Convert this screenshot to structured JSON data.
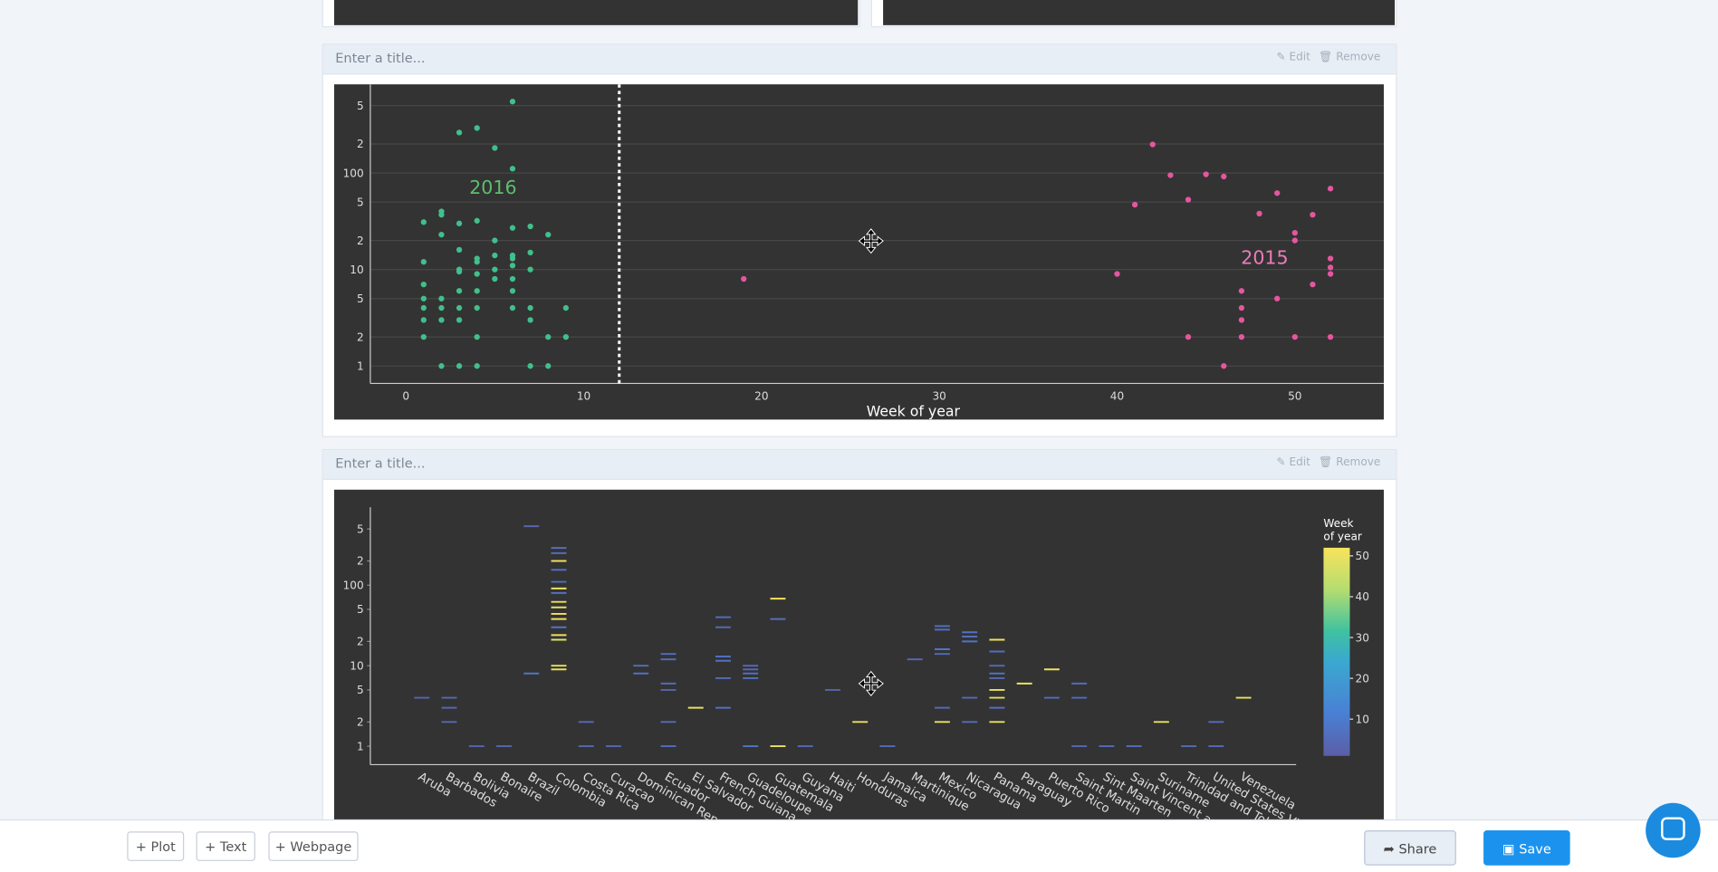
{
  "panels": [
    {
      "title_placeholder": "Enter a title...",
      "edit": "Edit",
      "remove": "Remove"
    },
    {
      "title_placeholder": "Enter a title...",
      "edit": "Edit",
      "remove": "Remove"
    }
  ],
  "toolbar": {
    "add_buttons": [
      "+ Plot",
      "+ Text",
      "+ Webpage"
    ],
    "share": "Share",
    "save": "Save"
  },
  "chart_data": [
    {
      "type": "scatter",
      "xlabel": "Week of year",
      "xlim": [
        -2,
        55
      ],
      "xticks": [
        0,
        10,
        20,
        30,
        40,
        50
      ],
      "yscale": "log",
      "ylim": [
        0.66,
        830
      ],
      "yticks": [
        1,
        2,
        5,
        10,
        {
          "value": 20,
          "label": "2"
        },
        {
          "value": 50,
          "label": "5"
        },
        100,
        {
          "value": 200,
          "label": "2"
        },
        {
          "value": 500,
          "label": "5"
        }
      ],
      "grid": true,
      "shapes": [
        {
          "type": "dashed-line",
          "x": 12,
          "color": "#ffffff"
        }
      ],
      "annotations": [
        {
          "text": "2016",
          "x": 4.9,
          "y": 71,
          "color": "#5cbf6e"
        },
        {
          "text": "2015",
          "x": 48.3,
          "y": 13.3,
          "color": "#ea7cba"
        }
      ],
      "series": [
        {
          "color": "#41bf8c",
          "x": [
            6,
            3,
            4,
            5,
            6,
            1,
            2,
            2,
            2,
            3,
            4,
            5,
            6,
            7,
            8,
            1,
            3,
            4,
            4,
            5,
            6,
            6,
            7,
            3,
            3,
            4,
            5,
            6,
            7,
            5,
            6,
            1,
            3,
            4,
            6,
            1,
            2,
            1,
            2,
            3,
            4,
            6,
            7,
            9,
            1,
            2,
            3,
            7,
            1,
            4,
            8,
            9,
            2,
            3,
            4,
            7,
            8
          ],
          "values": [
            550,
            263,
            293,
            182,
            111,
            31,
            40,
            37,
            23,
            30,
            32,
            20,
            27,
            28,
            23,
            12,
            16,
            13,
            12,
            14,
            14,
            13,
            15,
            10,
            9.5,
            9,
            10,
            11,
            10,
            8,
            8,
            7,
            6,
            6,
            6,
            5,
            5,
            4,
            4,
            4,
            4,
            4,
            4,
            4,
            3,
            3,
            3,
            3,
            2,
            2,
            2,
            2,
            1,
            1,
            1,
            1,
            1
          ]
        },
        {
          "color": "#e6569f",
          "x": [
            19,
            40,
            41,
            42,
            43,
            44,
            44,
            45,
            46,
            46,
            47,
            47,
            47,
            47,
            48,
            49,
            49,
            50,
            50,
            50,
            51,
            51,
            52,
            52,
            52,
            52,
            52
          ],
          "values": [
            8,
            9,
            47,
            198,
            95,
            53,
            2,
            97,
            92,
            1,
            6,
            4,
            3,
            2,
            38,
            62,
            5,
            24,
            20,
            2,
            37,
            7,
            69,
            13,
            10.5,
            9,
            2
          ]
        }
      ]
    },
    {
      "type": "strip",
      "categories": [
        "Aruba",
        "Barbados",
        "Bolivia",
        "Bonaire",
        "Brazil",
        "Colombia",
        "Costa Rica",
        "Curacao",
        "Dominican Republic",
        "Ecuador",
        "El Salvador",
        "French Guiana",
        "Guadeloupe",
        "Guatemala",
        "Guyana",
        "Haiti",
        "Honduras",
        "Jamaica",
        "Martinique",
        "Mexico",
        "Nicaragua",
        "Panama",
        "Paraguay",
        "Puerto Rico",
        "Saint Martin",
        "Sint Maarten",
        "Saint Vincent and the Grenadines",
        "Suriname",
        "Trinidad and Tobago",
        "United States Virgin Islands",
        "Venezuela"
      ],
      "xlim": [
        -1.88,
        31.92
      ],
      "yscale": "log",
      "ylim": [
        0.59,
        930
      ],
      "yticks": [
        1,
        2,
        5,
        10,
        {
          "value": 20,
          "label": "2"
        },
        {
          "value": 50,
          "label": "5"
        },
        100,
        {
          "value": 200,
          "label": "2"
        },
        {
          "value": 500,
          "label": "5"
        }
      ],
      "grid": false,
      "colorbar": {
        "title": [
          "Week",
          "of year"
        ],
        "range": [
          1,
          52
        ],
        "ticks": [
          10,
          20,
          30,
          40,
          50
        ],
        "colorscale": [
          [
            0,
            "#5b5ea6"
          ],
          [
            0.2,
            "#4a7fd4"
          ],
          [
            0.45,
            "#3aa8d0"
          ],
          [
            0.6,
            "#3fc2a0"
          ],
          [
            0.8,
            "#b5dd70"
          ],
          [
            1,
            "#f8e35c"
          ]
        ]
      },
      "x": [
        "Aruba",
        "Barbados",
        "Barbados",
        "Barbados",
        "Bolivia",
        "Bonaire",
        "Brazil",
        "Brazil",
        "Colombia",
        "Colombia",
        "Colombia",
        "Colombia",
        "Colombia",
        "Colombia",
        "Colombia",
        "Colombia",
        "Colombia",
        "Colombia",
        "Colombia",
        "Colombia",
        "Colombia",
        "Colombia",
        "Colombia",
        "Colombia",
        "Costa Rica",
        "Costa Rica",
        "Curacao",
        "Dominican Republic",
        "Dominican Republic",
        "Ecuador",
        "Ecuador",
        "Ecuador",
        "Ecuador",
        "Ecuador",
        "Ecuador",
        "El Salvador",
        "French Guiana",
        "French Guiana",
        "French Guiana",
        "French Guiana",
        "French Guiana",
        "French Guiana",
        "Guadeloupe",
        "Guadeloupe",
        "Guadeloupe",
        "Guadeloupe",
        "Guadeloupe",
        "Guatemala",
        "Guatemala",
        "Guatemala",
        "Guyana",
        "Haiti",
        "Honduras",
        "Jamaica",
        "Martinique",
        "Mexico",
        "Mexico",
        "Mexico",
        "Mexico",
        "Mexico",
        "Mexico",
        "Nicaragua",
        "Nicaragua",
        "Nicaragua",
        "Nicaragua",
        "Nicaragua",
        "Panama",
        "Panama",
        "Panama",
        "Panama",
        "Panama",
        "Panama",
        "Panama",
        "Panama",
        "Panama",
        "Paraguay",
        "Puerto Rico",
        "Puerto Rico",
        "Saint Martin",
        "Saint Martin",
        "Saint Martin",
        "Sint Maarten",
        "Saint Vincent and the Grenadines",
        "Suriname",
        "Trinidad and Tobago",
        "United States Virgin Islands",
        "United States Virgin Islands",
        "Venezuela"
      ],
      "values": [
        4,
        4,
        3,
        2,
        1,
        1,
        540,
        8,
        290,
        250,
        200,
        155,
        110,
        91,
        80,
        62,
        53,
        44,
        38,
        30,
        24,
        21,
        10,
        9,
        2,
        1,
        1,
        10,
        8,
        14,
        12,
        6,
        5,
        2,
        1,
        3,
        40,
        30,
        13,
        11.5,
        7,
        3,
        10,
        9,
        8,
        7,
        1,
        68,
        38,
        1,
        1,
        5,
        2,
        1,
        12,
        31,
        28,
        16,
        14,
        3,
        2,
        26,
        23,
        20,
        4,
        2,
        21,
        15,
        10,
        8,
        7,
        5,
        4,
        3,
        2,
        6,
        9,
        4,
        6,
        4,
        1,
        1,
        1,
        2,
        1,
        2,
        1,
        4
      ],
      "color_values": [
        3,
        4,
        3,
        4,
        3,
        4,
        3,
        8,
        6,
        5,
        50,
        8,
        6,
        51,
        7,
        50,
        49,
        52,
        51,
        8,
        50,
        48,
        50,
        49,
        5,
        4,
        4,
        6,
        7,
        6,
        5,
        4,
        3,
        5,
        6,
        49,
        5,
        4,
        6,
        7,
        5,
        6,
        5,
        4,
        6,
        7,
        8,
        51,
        6,
        50,
        4,
        3,
        50,
        5,
        3,
        7,
        6,
        8,
        5,
        4,
        50,
        7,
        6,
        8,
        5,
        6,
        50,
        6,
        5,
        7,
        4,
        51,
        49,
        6,
        50,
        50,
        51,
        6,
        5,
        6,
        4,
        5,
        6,
        50,
        5,
        6,
        5,
        50
      ]
    }
  ]
}
